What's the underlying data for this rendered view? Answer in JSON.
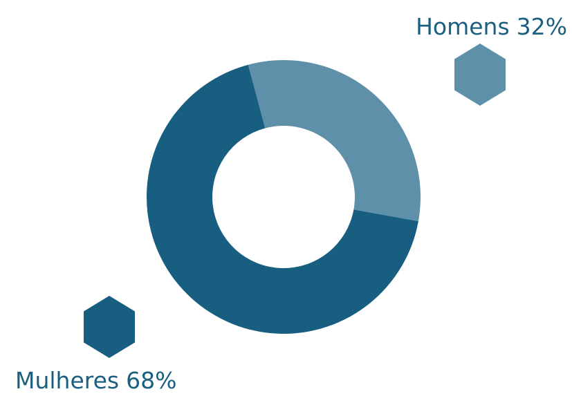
{
  "chart_data": {
    "type": "donut",
    "categories": [
      "Homens",
      "Mulheres"
    ],
    "values": [
      32,
      68
    ],
    "value_labels": [
      "32%",
      "68%"
    ],
    "colors": [
      "#5e90a9",
      "#175e80"
    ]
  }
}
